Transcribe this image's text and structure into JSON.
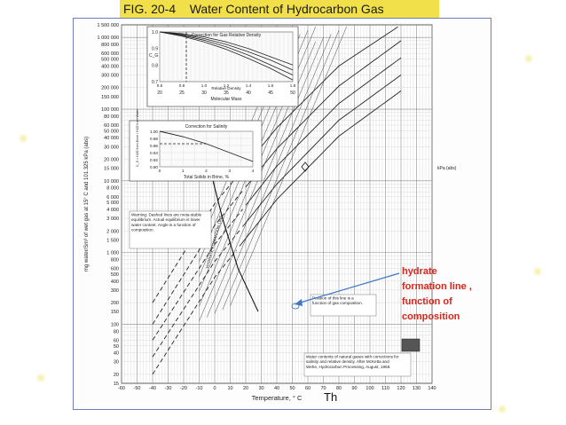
{
  "slide": {
    "title": "FIG. 20-4    Water Content of Hydrocarbon Gas",
    "footer_fragment": "Th"
  },
  "colors": {
    "title_band": "#f1e04a",
    "annotation": "#d4271d",
    "arrow": "#3c78c8",
    "frame": "#6d7fb4"
  },
  "annotation": {
    "lines": [
      "hydrate",
      "formation line ,",
      "function of",
      "composition"
    ]
  },
  "chart_data": [
    {
      "type": "line",
      "title": "",
      "xlabel": "Temperature, ° C",
      "ylabel": "mg water/Sm³ of wet gas at 15° C and 101.325 kPa (abs)",
      "xlim": [
        -60,
        140
      ],
      "x_ticks": [
        "-60",
        "-50",
        "-40",
        "-30",
        "-20",
        "-10",
        "0",
        "10",
        "20",
        "30",
        "40",
        "50",
        "60",
        "70",
        "80",
        "90",
        "100",
        "110",
        "120",
        "130",
        "140"
      ],
      "y_scale": "log",
      "ylim": [
        15,
        1500000
      ],
      "y_ticks": [
        "1 500 000",
        "1 000 000",
        "800 000",
        "600 000",
        "500 000",
        "400 000",
        "300 000",
        "200 000",
        "150 000",
        "100 000",
        "80 000",
        "60 000",
        "50 000",
        "40 000",
        "30 000",
        "20 000",
        "15 000",
        "10 000",
        "8 000",
        "6 000",
        "5 000",
        "4 000",
        "3 000",
        "2 000",
        "1 500",
        "1 000",
        "800",
        "600",
        "500",
        "400",
        "300",
        "200",
        "150",
        "100",
        "80",
        "60",
        "50",
        "40",
        "30",
        "20",
        "15"
      ],
      "grid": true,
      "series_note": "Family of water-content curves by pressure (kPa abs); dashed lines below hydrate formation line",
      "series": [
        {
          "values_at_x": [
            -40,
            0,
            40,
            80,
            120
          ],
          "values": [
            200,
            4800,
            55000,
            400000,
            1500000
          ]
        },
        {
          "values_at_x": [
            -40,
            0,
            40,
            80,
            120
          ],
          "values": [
            100,
            2400,
            28000,
            210000,
            900000
          ]
        },
        {
          "values_at_x": [
            -40,
            0,
            40,
            80,
            120
          ],
          "values": [
            60,
            1300,
            16000,
            120000,
            520000
          ]
        },
        {
          "values_at_x": [
            -40,
            0,
            40,
            80,
            120
          ],
          "values": [
            35,
            750,
            9000,
            70000,
            300000
          ]
        },
        {
          "values_at_x": [
            -40,
            0,
            40,
            80,
            120
          ],
          "values": [
            20,
            450,
            5500,
            42000,
            180000
          ]
        }
      ],
      "annotations": [
        "Warning: Dashed lines are meta-stable equilibrium. Actual equilibrium is lower water content. Angle is a function of composition.",
        "HYDRATE FORMATION LINE",
        "Position of this line is a function of gas composition.",
        "Water contents of natural gases with corrections for salinity and relative density. After McKetta and Wehe, Hydrocarbon Processing, August, 1958.",
        "kPa (abs)"
      ]
    },
    {
      "type": "line",
      "title": "Correction for Gas Relative Density",
      "xlabel": "Molecular Mass",
      "ylabel": "C_G",
      "x_ticks": [
        "20",
        "25",
        "30",
        "35",
        "40",
        "45",
        "50"
      ],
      "secondary_x_label": "Relative Density",
      "secondary_x_ticks": [
        "0.6",
        "0.8",
        "1.0",
        "1.2",
        "1.4",
        "1.6",
        "1.8"
      ],
      "y_ticks": [
        "1.0",
        "0.9",
        "0.8",
        "0.7"
      ],
      "series": [
        {
          "x": [
            20,
            25,
            30,
            35,
            40,
            45,
            50
          ],
          "values": [
            1.0,
            0.99,
            0.97,
            0.94,
            0.9,
            0.85,
            0.8
          ]
        },
        {
          "x": [
            20,
            25,
            30,
            35,
            40,
            45,
            50
          ],
          "values": [
            1.0,
            0.985,
            0.96,
            0.925,
            0.88,
            0.83,
            0.77
          ]
        },
        {
          "x": [
            20,
            25,
            30,
            35,
            40,
            45,
            50
          ],
          "values": [
            1.0,
            0.98,
            0.95,
            0.91,
            0.86,
            0.8,
            0.74
          ]
        },
        {
          "x": [
            20,
            25,
            30,
            35,
            40,
            45,
            50
          ],
          "values": [
            1.0,
            0.975,
            0.94,
            0.895,
            0.84,
            0.78,
            0.71
          ]
        }
      ]
    },
    {
      "type": "line",
      "title": "Correction for Salinity",
      "xlabel": "Total Solids in Brine, %",
      "ylabel": "C_S = H2O from Brine / H2O from Water",
      "x_ticks": [
        "0",
        "1",
        "2",
        "3",
        "4"
      ],
      "y_ticks": [
        "1.00",
        "0.98",
        "0.96",
        "0.94",
        "0.92",
        "0.90"
      ],
      "series": [
        {
          "x": [
            0,
            1,
            2,
            3,
            4
          ],
          "values": [
            1.0,
            0.985,
            0.965,
            0.94,
            0.915
          ]
        }
      ]
    }
  ]
}
